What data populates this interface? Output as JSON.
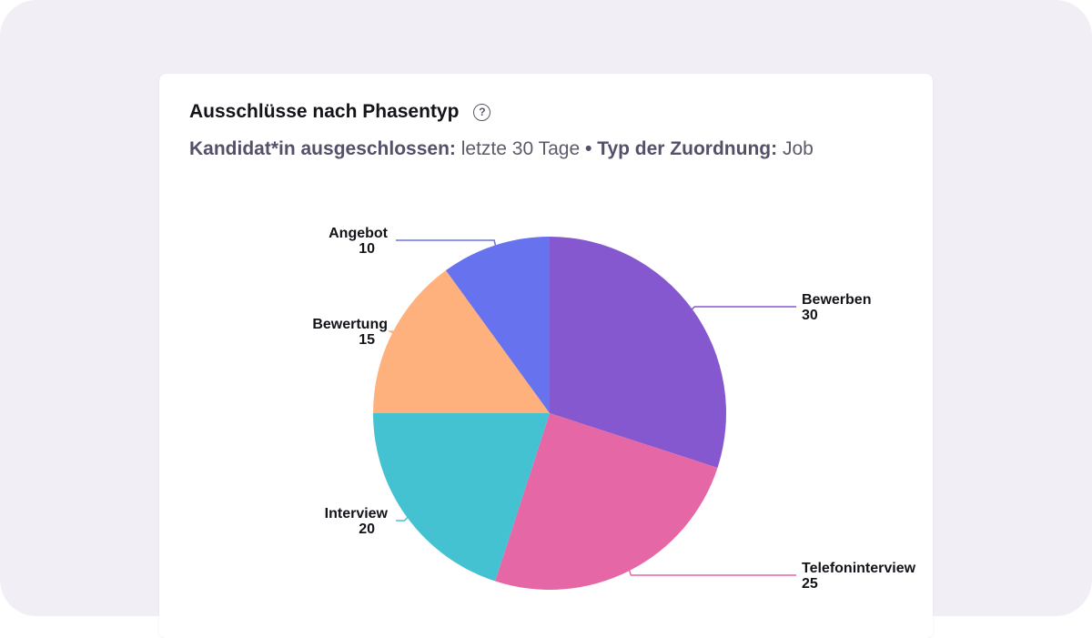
{
  "card": {
    "title": "Ausschlüsse nach Phasentyp",
    "help_icon": "question-circle-icon",
    "filter1_label": "Kandidat*in ausgeschlossen:",
    "filter1_value": "letzte 30 Tage",
    "separator": "•",
    "filter2_label": "Typ der Zuordnung:",
    "filter2_value": "Job"
  },
  "chart_data": {
    "type": "pie",
    "title": "Ausschlüsse nach Phasentyp",
    "start": "12 o'clock, clockwise",
    "slices": [
      {
        "label": "Bewerben",
        "value": 30,
        "color": "#8658CF"
      },
      {
        "label": "Telefoninterview",
        "value": 25,
        "color": "#E667A6"
      },
      {
        "label": "Interview",
        "value": 20,
        "color": "#44C2D2"
      },
      {
        "label": "Bewertung",
        "value": 15,
        "color": "#FFB17D"
      },
      {
        "label": "Angebot",
        "value": 10,
        "color": "#6672EE"
      }
    ]
  }
}
